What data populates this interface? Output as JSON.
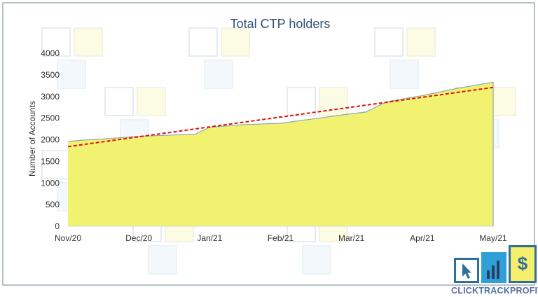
{
  "chart_data": {
    "type": "area",
    "title": "Total CTP holders",
    "xlabel": "",
    "ylabel": "Number of Accounts",
    "ylim": [
      0,
      4000
    ],
    "yticks": [
      0,
      500,
      1000,
      1500,
      2000,
      2500,
      3000,
      3500,
      4000
    ],
    "xticks": [
      "Nov/20",
      "Dec/20",
      "Jan/21",
      "Feb/21",
      "Mar/21",
      "Apr/21",
      "May/21"
    ],
    "x": [
      0,
      0.2,
      0.5,
      1.0,
      1.5,
      1.8,
      2.0,
      2.5,
      3.0,
      3.5,
      4.0,
      4.2,
      4.5,
      5.0,
      5.5,
      6.0
    ],
    "values": [
      1960,
      1990,
      2020,
      2080,
      2110,
      2130,
      2290,
      2350,
      2380,
      2490,
      2600,
      2640,
      2880,
      3020,
      3190,
      3330
    ],
    "trendline": {
      "style": "dashed",
      "color": "#dd1111",
      "start": 1840,
      "end": 3210
    },
    "area_color": "#f2f271",
    "line_color": "#8fa6ac",
    "grid": false,
    "legend": "none"
  },
  "logo": {
    "text_part1": "CLICK",
    "text_part2": "TRACK",
    "text_part3": "PROFIT",
    "dollar": "$",
    "colors": {
      "teal": "#2f6f9a",
      "blue": "#2f9fd8",
      "yellow": "#f4ee6a"
    }
  }
}
